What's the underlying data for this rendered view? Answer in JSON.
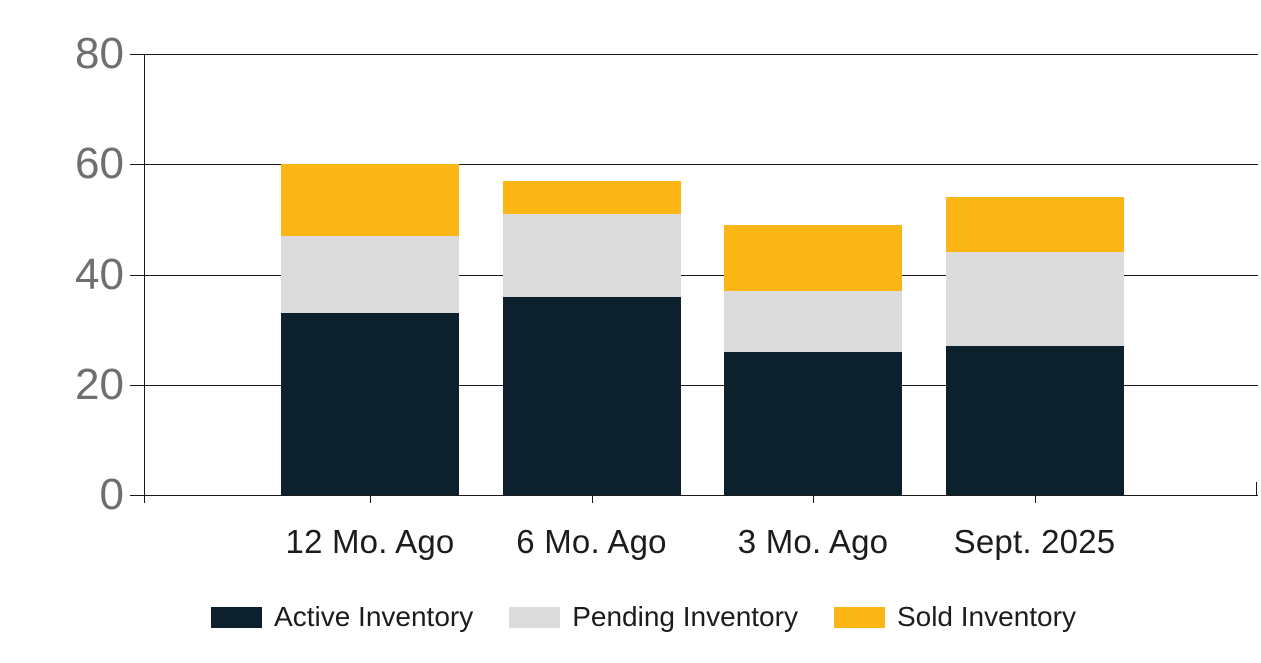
{
  "chart_data": {
    "type": "bar",
    "stacked": true,
    "title": "",
    "xlabel": "",
    "ylabel": "",
    "categories": [
      "12 Mo. Ago",
      "6 Mo. Ago",
      "3 Mo. Ago",
      "Sept. 2025"
    ],
    "series": [
      {
        "name": "Active Inventory",
        "color": "#0D212D",
        "values": [
          33,
          36,
          26,
          27
        ]
      },
      {
        "name": "Pending Inventory",
        "color": "#DCDCDC",
        "values": [
          14,
          15,
          11,
          17
        ]
      },
      {
        "name": "Sold Inventory",
        "color": "#FBB616",
        "values": [
          13,
          6,
          12,
          10
        ]
      }
    ],
    "totals": [
      60,
      57,
      49,
      54
    ],
    "ylim": [
      0,
      80
    ],
    "yticks": [
      0,
      20,
      40,
      60,
      80
    ],
    "grid": true,
    "legend_position": "bottom"
  },
  "colors": {
    "axis_line": "#1a1a1a",
    "y_label_text": "#6f6f6f",
    "x_label_text": "#1c1c1c",
    "background": "#ffffff"
  }
}
